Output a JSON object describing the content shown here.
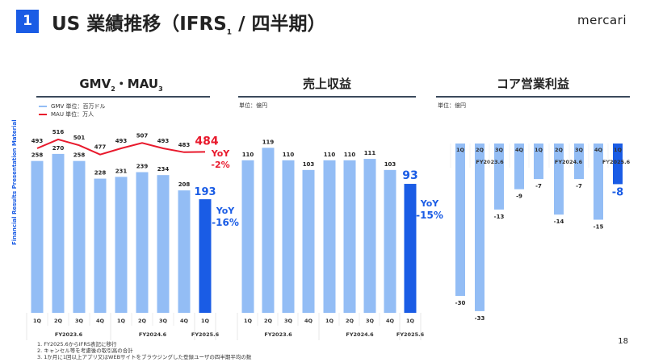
{
  "header": {
    "section_number": "1",
    "title": "US 業績推移（IFRS",
    "title_sup": "1",
    "title_tail": " / 四半期）",
    "logo": "mercari"
  },
  "side_label": "Financial Results Presentation Material",
  "colors": {
    "bar": "#93bdf5",
    "bar_latest": "#1a5ce5",
    "mau_line": "#e8192c",
    "yoy_blue": "#1a5ce5",
    "yoy_red": "#e8192c"
  },
  "chart_data": [
    {
      "type": "bar+line",
      "title": "GMV",
      "title_sup1": "2",
      "title_mid": "・MAU",
      "title_sup2": "3",
      "legend": [
        {
          "name": "GMV 単位：百万ドル",
          "color": "#93bdf5"
        },
        {
          "name": "MAU 単位：万人",
          "color": "#e8192c"
        }
      ],
      "categories": [
        "1Q",
        "2Q",
        "3Q",
        "4Q",
        "1Q",
        "2Q",
        "3Q",
        "4Q",
        "1Q"
      ],
      "groups": [
        "FY2023.6",
        "FY2024.6",
        "FY2025.6"
      ],
      "series": [
        {
          "name": "GMV",
          "type": "bar",
          "values": [
            258,
            270,
            258,
            228,
            231,
            239,
            234,
            208,
            193
          ]
        },
        {
          "name": "MAU",
          "type": "line",
          "values": [
            493,
            516,
            501,
            477,
            493,
            507,
            493,
            483,
            484
          ]
        }
      ],
      "yoy_gmv": "YoY\n-16%",
      "yoy_mau": "YoY\n-2%",
      "yoy_label": "YoY",
      "yoy_gmv_value": "-16%",
      "yoy_mau_value": "-2%"
    },
    {
      "type": "bar",
      "title": "売上収益",
      "unit": "単位：億円",
      "categories": [
        "1Q",
        "2Q",
        "3Q",
        "4Q",
        "1Q",
        "2Q",
        "3Q",
        "4Q",
        "1Q"
      ],
      "groups": [
        "FY2023.6",
        "FY2024.6",
        "FY2025.6"
      ],
      "values": [
        110,
        119,
        110,
        103,
        110,
        110,
        111,
        103,
        93
      ],
      "yoy_label": "YoY",
      "yoy_value": "-15%"
    },
    {
      "type": "bar",
      "title": "コア営業利益",
      "unit": "単位：億円",
      "categories": [
        "1Q",
        "2Q",
        "3Q",
        "4Q",
        "1Q",
        "2Q",
        "3Q",
        "4Q",
        "1Q"
      ],
      "groups": [
        "FY2023.6",
        "FY2024.6",
        "FY2025.6"
      ],
      "values": [
        -30,
        -33,
        -13,
        -9,
        -7,
        -14,
        -7,
        -15,
        -8
      ]
    }
  ],
  "footnotes": [
    "1. FY2025.6からIFRS表記に移行",
    "2. キャンセル等を考慮後の取引高の合計",
    "3. 1か月に1回以上アプリ又はWEBサイトをブラウジングした登録ユーザの四半期平均の数"
  ],
  "page_number": "18"
}
